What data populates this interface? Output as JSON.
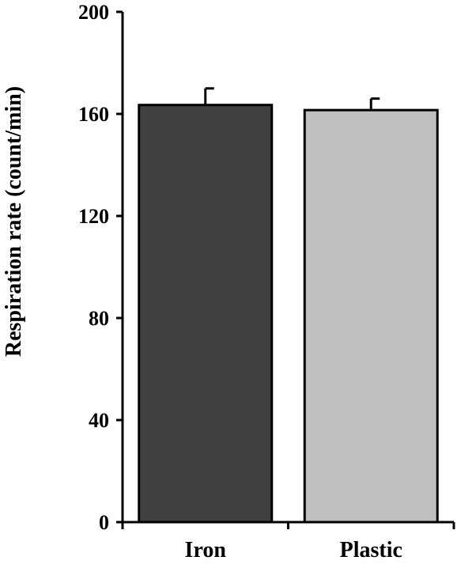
{
  "chart_data": {
    "type": "bar",
    "title": "",
    "xlabel": "",
    "ylabel": "Respiration rate (count/min)",
    "ylim": [
      0,
      200
    ],
    "yticks": [
      0,
      40,
      80,
      120,
      160,
      200
    ],
    "categories": [
      "Iron",
      "Plastic"
    ],
    "series": [
      {
        "values": [
          163.5,
          161.5
        ],
        "errors": [
          6.5,
          4.5
        ],
        "colors": [
          "#404040",
          "#bfbfbf"
        ]
      }
    ],
    "grid": false,
    "legend": "none"
  }
}
